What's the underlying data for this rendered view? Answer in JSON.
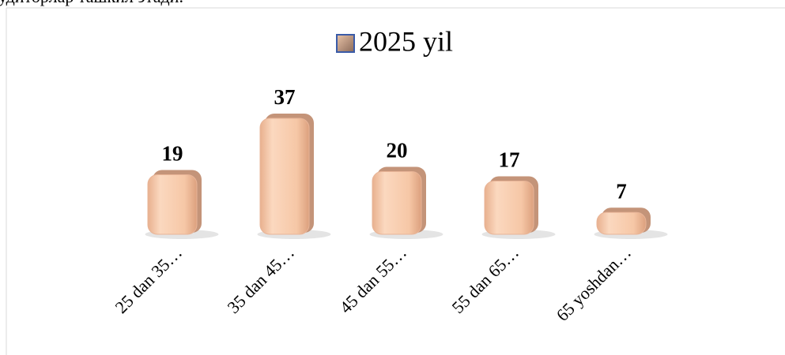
{
  "top_text": "удиторлар ташкил этади.",
  "chart_data": {
    "type": "bar",
    "legend": "2025 yil",
    "color": "#f6c7a6",
    "categories": [
      "25 dan 35…",
      "35 dan  45…",
      "45 dan 55…",
      "55 dan 65…",
      "65 yoshdan…"
    ],
    "values": [
      19,
      37,
      20,
      17,
      7
    ]
  }
}
